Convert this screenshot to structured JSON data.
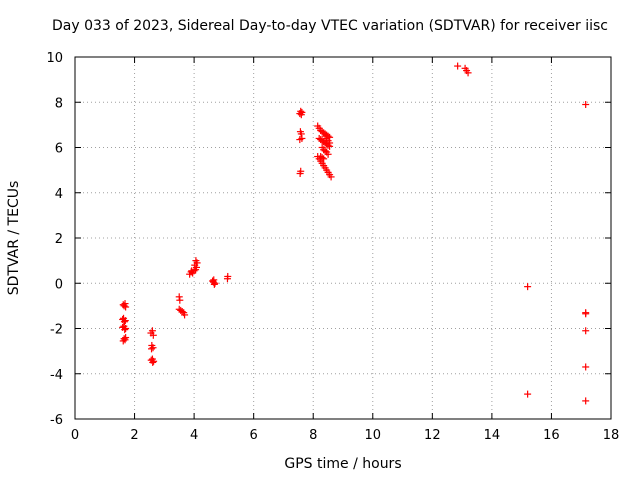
{
  "chart_data": {
    "type": "scatter",
    "title": "Day 033 of 2023, Sidereal Day-to-day VTEC variation (SDTVAR) for receiver iisc",
    "xlabel": "GPS time / hours",
    "ylabel": "SDTVAR / TECUs",
    "xlim": [
      0,
      18
    ],
    "ylim": [
      -6,
      10
    ],
    "xticks": [
      0,
      2,
      4,
      6,
      8,
      10,
      12,
      14,
      16,
      18
    ],
    "yticks": [
      -6,
      -4,
      -2,
      0,
      2,
      4,
      6,
      8,
      10
    ],
    "grid": true,
    "marker": "+",
    "color": "#ff0000",
    "series": [
      {
        "name": "SDTVAR",
        "x": [
          1.62,
          1.65,
          1.68,
          1.7,
          1.6,
          1.63,
          1.66,
          1.69,
          1.6,
          1.64,
          1.67,
          1.7,
          1.65,
          1.68,
          1.62,
          1.7,
          2.55,
          2.6,
          2.63,
          2.58,
          2.62,
          2.57,
          2.6,
          2.64,
          2.56,
          2.61,
          3.5,
          3.52,
          3.5,
          3.55,
          3.6,
          3.65,
          3.68,
          3.85,
          3.9,
          3.95,
          4.0,
          4.05,
          4.08,
          4.1,
          4.02,
          3.92,
          4.06,
          4.62,
          4.65,
          4.68,
          4.7,
          4.66,
          5.12,
          5.13,
          7.55,
          7.58,
          7.6,
          7.62,
          7.57,
          7.6,
          7.55,
          7.62,
          7.58,
          7.56,
          8.15,
          8.2,
          8.25,
          8.3,
          8.35,
          8.4,
          8.45,
          8.5,
          8.55,
          8.2,
          8.25,
          8.3,
          8.35,
          8.4,
          8.45,
          8.5,
          8.55,
          8.3,
          8.35,
          8.4,
          8.45,
          8.5,
          8.25,
          8.3,
          8.35,
          8.4,
          8.45,
          8.5,
          8.55,
          8.15,
          8.2,
          8.25,
          8.3,
          8.35,
          8.4,
          8.45,
          8.5,
          8.55,
          8.6,
          12.85,
          13.1,
          13.15,
          13.2,
          15.2,
          15.2,
          17.15,
          17.15,
          17.15,
          17.15,
          17.15,
          17.15
        ],
        "y": [
          -0.95,
          -1.0,
          -0.9,
          -1.05,
          -1.6,
          -1.55,
          -1.7,
          -1.65,
          -1.95,
          -1.9,
          -2.05,
          -2.0,
          -2.45,
          -2.5,
          -2.55,
          -2.4,
          -2.2,
          -2.1,
          -2.3,
          -2.75,
          -2.85,
          -2.9,
          -3.35,
          -3.45,
          -3.4,
          -3.5,
          -0.6,
          -0.75,
          -1.15,
          -1.2,
          -1.25,
          -1.3,
          -1.4,
          0.4,
          0.5,
          0.45,
          0.55,
          0.6,
          0.7,
          0.9,
          0.8,
          0.55,
          1.0,
          0.1,
          0.05,
          -0.05,
          0.0,
          0.15,
          0.2,
          0.3,
          7.5,
          7.6,
          7.45,
          7.55,
          6.7,
          6.6,
          6.35,
          6.4,
          4.95,
          4.85,
          6.95,
          6.85,
          6.75,
          6.7,
          6.65,
          6.6,
          6.55,
          6.5,
          6.45,
          6.4,
          6.35,
          6.3,
          6.25,
          6.2,
          6.15,
          6.1,
          6.05,
          6.0,
          5.9,
          5.85,
          5.8,
          5.7,
          5.6,
          5.55,
          5.5,
          6.5,
          6.4,
          6.3,
          6.2,
          5.6,
          5.5,
          5.4,
          5.3,
          5.2,
          5.1,
          5.0,
          4.9,
          4.8,
          4.7,
          9.6,
          9.5,
          9.4,
          9.3,
          -0.15,
          -4.9,
          7.9,
          -1.35,
          -2.1,
          -3.7,
          -5.2,
          -1.3
        ]
      }
    ]
  }
}
